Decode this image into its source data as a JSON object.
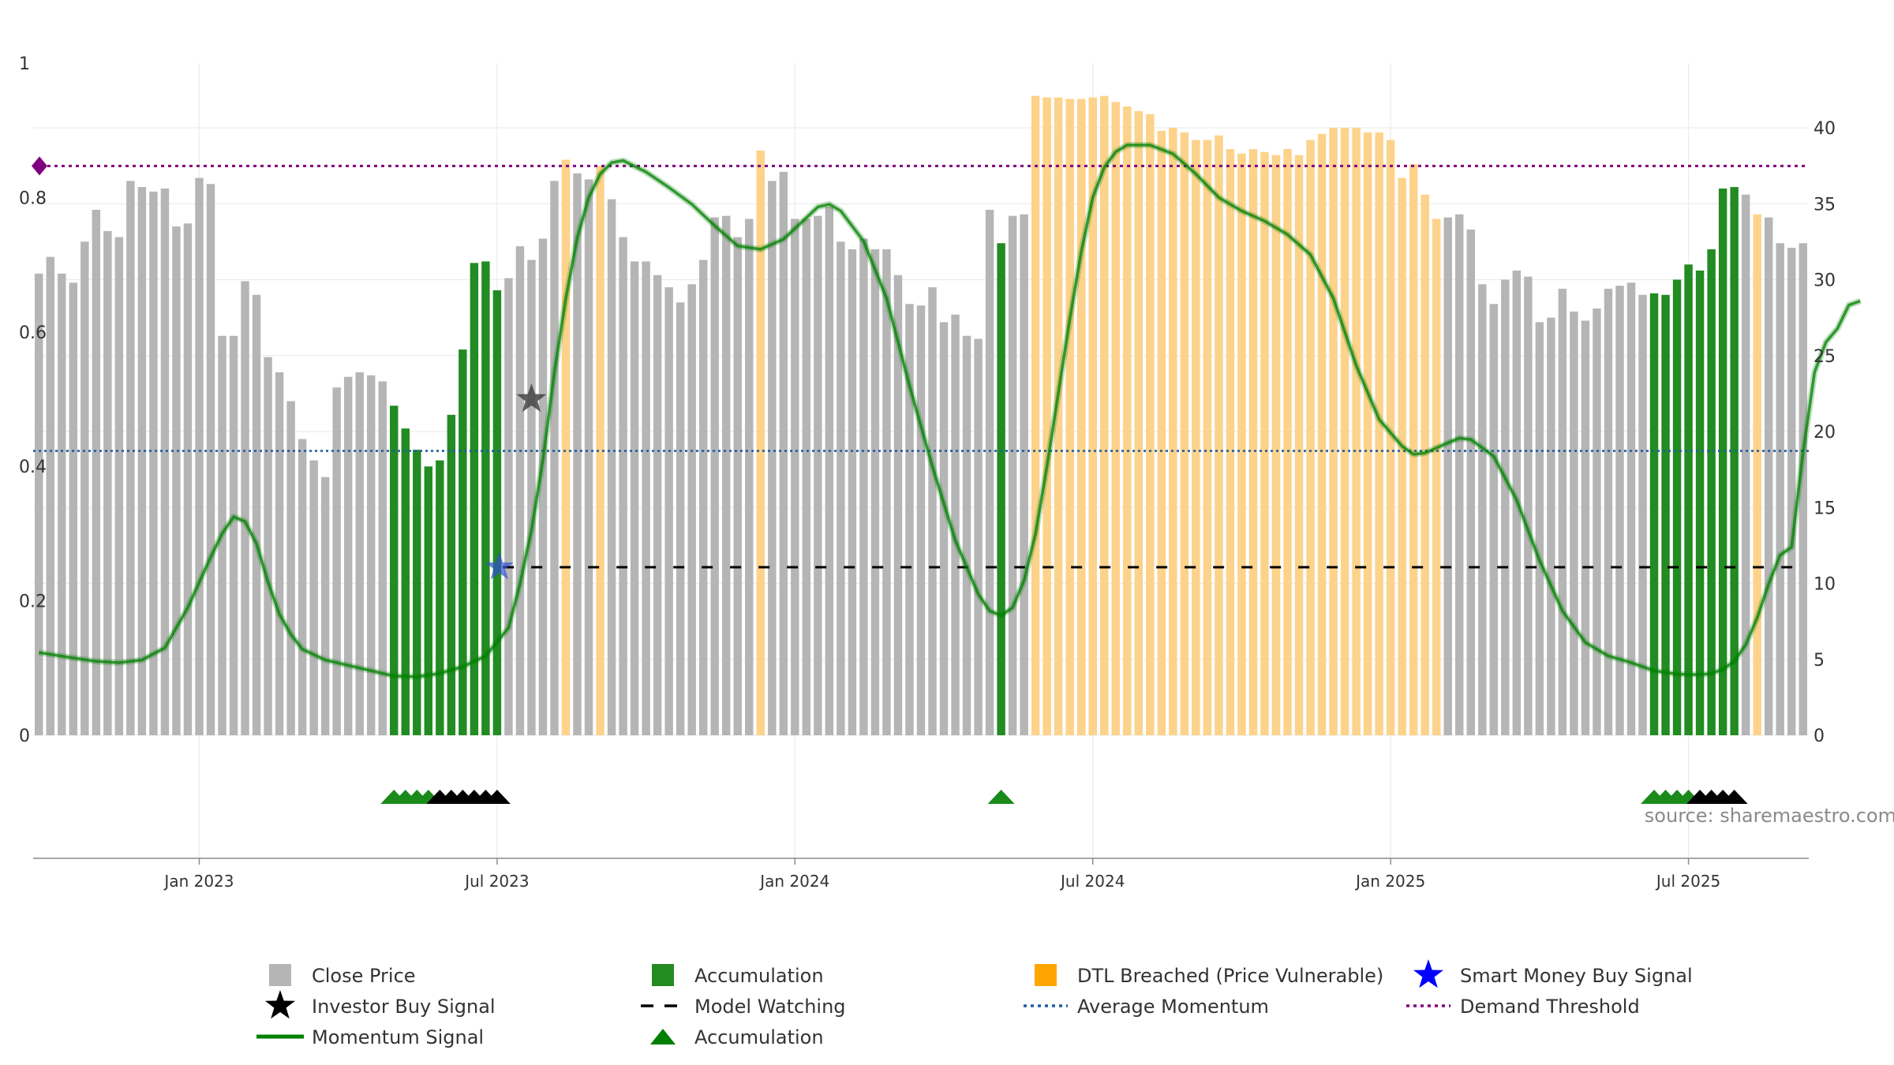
{
  "source_text": "source: sharemaestro.com",
  "chart_data": {
    "type": "bar",
    "left_axis": {
      "ticks": [
        "0",
        "0.2",
        "0.4",
        "0.6",
        "0.8",
        "1"
      ],
      "range": [
        0,
        1
      ]
    },
    "right_axis": {
      "ticks": [
        "0",
        "5",
        "10",
        "15",
        "20",
        "25",
        "30",
        "35",
        "40"
      ],
      "range": [
        0,
        40
      ]
    },
    "x_axis": {
      "ticks": [
        {
          "label": "Jan 2023",
          "index": 14.5
        },
        {
          "label": "Jul 2023",
          "index": 40.5
        },
        {
          "label": "Jan 2024",
          "index": 66.5
        },
        {
          "label": "Jul 2024",
          "index": 92.5
        },
        {
          "label": "Jan 2025",
          "index": 118.5
        },
        {
          "label": "Jul 2025",
          "index": 144.5
        }
      ]
    },
    "bar_values": [
      30.4,
      31.5,
      30.4,
      29.8,
      32.5,
      34.6,
      33.2,
      32.8,
      36.5,
      36.1,
      35.8,
      36.0,
      33.5,
      33.7,
      36.7,
      36.3,
      26.3,
      26.3,
      29.9,
      29.0,
      24.9,
      23.9,
      22.0,
      19.5,
      18.1,
      17.0,
      22.9,
      23.6,
      23.9,
      23.7,
      23.3,
      21.7,
      20.2,
      18.8,
      17.7,
      18.1,
      21.1,
      25.4,
      31.1,
      31.2,
      29.3,
      30.1,
      32.2,
      31.3,
      32.7,
      36.5,
      37.9,
      37.0,
      36.6,
      37.5,
      35.3,
      32.8,
      31.2,
      31.2,
      30.3,
      29.5,
      28.5,
      29.7,
      31.3,
      34.1,
      34.2,
      32.8,
      34.0,
      38.5,
      36.5,
      37.1,
      34.0,
      34.0,
      34.2,
      34.8,
      32.5,
      32.0,
      32.7,
      32.0,
      32.0,
      30.3,
      28.4,
      28.3,
      29.5,
      27.2,
      27.7,
      26.3,
      26.1,
      34.6,
      32.4,
      34.2,
      34.3,
      42.1,
      42.0,
      42.0,
      41.9,
      41.9,
      42.0,
      42.1,
      41.7,
      41.4,
      41.1,
      40.9,
      39.8,
      40.0,
      39.7,
      39.2,
      39.2,
      39.5,
      38.6,
      38.3,
      38.6,
      38.4,
      38.2,
      38.6,
      38.2,
      39.2,
      39.6,
      40.0,
      40.0,
      40.0,
      39.7,
      39.7,
      39.2,
      36.7,
      37.6,
      35.6,
      34.0,
      34.1,
      34.3,
      33.3,
      29.7,
      28.4,
      30.0,
      30.6,
      30.2,
      27.2,
      27.5,
      29.4,
      27.9,
      27.3,
      28.1,
      29.4,
      29.6,
      29.8,
      29.0,
      29.1,
      29.0,
      30.0,
      31.0,
      30.6,
      32.0,
      36.0,
      36.1,
      35.6,
      34.3,
      34.1,
      32.4,
      32.1,
      32.4
    ],
    "bar_categories": "Gray = Close Price, Green = Accumulation, Orange = DTL Breached (Price Vulnerable)",
    "accumulation_ranges": [
      [
        31,
        40
      ],
      [
        84,
        84
      ],
      [
        141,
        148
      ]
    ],
    "dtl_ranges": [
      [
        46,
        46
      ],
      [
        49,
        49
      ],
      [
        63,
        63
      ],
      [
        87,
        121
      ],
      [
        122,
        122
      ],
      [
        150,
        150
      ]
    ],
    "momentum_signal": [
      [
        0,
        0.123
      ],
      [
        3,
        0.115
      ],
      [
        5,
        0.11
      ],
      [
        7,
        0.108
      ],
      [
        9,
        0.112
      ],
      [
        11,
        0.13
      ],
      [
        13,
        0.19
      ],
      [
        15,
        0.265
      ],
      [
        16,
        0.3
      ],
      [
        17,
        0.325
      ],
      [
        18,
        0.318
      ],
      [
        19,
        0.285
      ],
      [
        20,
        0.228
      ],
      [
        21,
        0.18
      ],
      [
        22,
        0.15
      ],
      [
        23,
        0.128
      ],
      [
        25,
        0.112
      ],
      [
        28,
        0.1
      ],
      [
        31,
        0.088
      ],
      [
        33,
        0.087
      ],
      [
        35,
        0.092
      ],
      [
        37,
        0.102
      ],
      [
        39,
        0.118
      ],
      [
        41,
        0.16
      ],
      [
        42,
        0.225
      ],
      [
        43,
        0.305
      ],
      [
        44,
        0.41
      ],
      [
        45,
        0.54
      ],
      [
        46,
        0.65
      ],
      [
        47,
        0.74
      ],
      [
        48,
        0.8
      ],
      [
        49,
        0.835
      ],
      [
        50,
        0.852
      ],
      [
        51,
        0.855
      ],
      [
        53,
        0.838
      ],
      [
        55,
        0.815
      ],
      [
        57,
        0.79
      ],
      [
        59,
        0.758
      ],
      [
        61,
        0.728
      ],
      [
        63,
        0.723
      ],
      [
        65,
        0.738
      ],
      [
        67,
        0.77
      ],
      [
        68,
        0.786
      ],
      [
        69,
        0.79
      ],
      [
        70,
        0.78
      ],
      [
        72,
        0.735
      ],
      [
        74,
        0.65
      ],
      [
        76,
        0.52
      ],
      [
        78,
        0.4
      ],
      [
        80,
        0.29
      ],
      [
        82,
        0.21
      ],
      [
        83,
        0.185
      ],
      [
        84,
        0.178
      ],
      [
        85,
        0.19
      ],
      [
        86,
        0.23
      ],
      [
        87,
        0.3
      ],
      [
        88,
        0.4
      ],
      [
        89,
        0.51
      ],
      [
        90,
        0.62
      ],
      [
        91,
        0.72
      ],
      [
        92,
        0.8
      ],
      [
        93,
        0.845
      ],
      [
        94,
        0.868
      ],
      [
        95,
        0.878
      ],
      [
        97,
        0.878
      ],
      [
        99,
        0.865
      ],
      [
        101,
        0.835
      ],
      [
        103,
        0.8
      ],
      [
        105,
        0.78
      ],
      [
        107,
        0.765
      ],
      [
        109,
        0.745
      ],
      [
        111,
        0.715
      ],
      [
        113,
        0.65
      ],
      [
        115,
        0.55
      ],
      [
        117,
        0.47
      ],
      [
        119,
        0.43
      ],
      [
        120,
        0.418
      ],
      [
        121,
        0.42
      ],
      [
        123,
        0.435
      ],
      [
        124,
        0.442
      ],
      [
        125,
        0.44
      ],
      [
        127,
        0.415
      ],
      [
        129,
        0.35
      ],
      [
        131,
        0.26
      ],
      [
        133,
        0.185
      ],
      [
        135,
        0.138
      ],
      [
        137,
        0.118
      ],
      [
        139,
        0.108
      ],
      [
        141,
        0.096
      ],
      [
        143,
        0.091
      ],
      [
        145,
        0.09
      ],
      [
        146,
        0.092
      ],
      [
        147,
        0.098
      ],
      [
        148,
        0.11
      ],
      [
        149,
        0.135
      ],
      [
        150,
        0.175
      ],
      [
        151,
        0.225
      ],
      [
        152,
        0.268
      ],
      [
        153,
        0.28
      ],
      [
        154,
        0.42
      ],
      [
        155,
        0.54
      ],
      [
        156,
        0.585
      ],
      [
        157,
        0.605
      ],
      [
        158,
        0.64
      ],
      [
        159,
        0.646
      ]
    ],
    "average_momentum": 0.423,
    "demand_threshold": 0.847,
    "model_watching": {
      "level": 0.25,
      "from_index": 40.5
    },
    "investor_buy_signal": {
      "index": 43,
      "value": 0.5
    },
    "smart_money_buy_signal": {
      "index": 40.2,
      "value": 0.25
    },
    "accumulation_markers": {
      "green": [
        31,
        32,
        33,
        34,
        84,
        141,
        142,
        143,
        144
      ],
      "black": [
        35,
        36,
        37,
        38,
        39,
        40,
        145,
        146,
        147,
        148
      ]
    },
    "legend": [
      {
        "label": "Close Price",
        "symbol": "square",
        "color": "#b5b5b5"
      },
      {
        "label": "Accumulation",
        "symbol": "square",
        "color": "#228b22"
      },
      {
        "label": "DTL Breached (Price Vulnerable)",
        "symbol": "square",
        "color": "#ffa500"
      },
      {
        "label": "Smart Money Buy Signal",
        "symbol": "star",
        "color": "#0000ff"
      },
      {
        "label": "Investor Buy Signal",
        "symbol": "star",
        "color": "#000000"
      },
      {
        "label": "Model Watching",
        "symbol": "dash",
        "color": "#000000"
      },
      {
        "label": "Average Momentum",
        "symbol": "dot",
        "color": "#1f5f9f"
      },
      {
        "label": "Demand Threshold",
        "symbol": "dot",
        "color": "#800080"
      },
      {
        "label": "Momentum Signal",
        "symbol": "line",
        "color": "#008000"
      },
      {
        "label": "Accumulation",
        "symbol": "triangle",
        "color": "#008000"
      }
    ],
    "colors": {
      "close": "#b5b5b5",
      "accumulation": "#228b22",
      "dtl": "#fdd28a",
      "momentum": "#008000",
      "average": "#1f5f9f",
      "threshold": "#800080",
      "watching": "#000000"
    }
  }
}
